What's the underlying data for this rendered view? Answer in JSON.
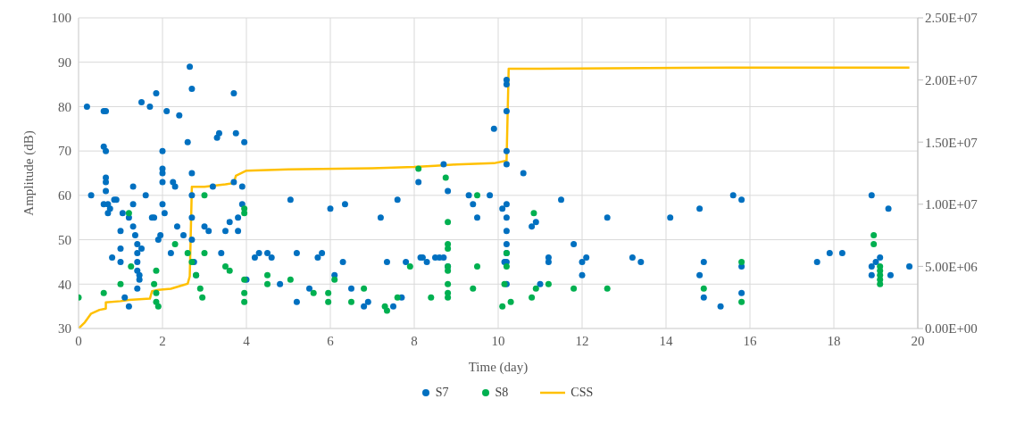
{
  "chart_data": {
    "type": "scatter",
    "xlabel": "Time (day)",
    "ylabel": "Amplitude (dB)",
    "xlim": [
      0,
      20
    ],
    "xticks": [
      0,
      2,
      4,
      6,
      8,
      10,
      12,
      14,
      16,
      18,
      20
    ],
    "ylim": [
      30,
      100
    ],
    "yticks": [
      30,
      40,
      50,
      60,
      70,
      80,
      90,
      100
    ],
    "y2lim": [
      0,
      25000000
    ],
    "y2ticks": [
      {
        "value": 0,
        "label": "0.00E+00"
      },
      {
        "value": 5000000,
        "label": "5.00E+06"
      },
      {
        "value": 10000000,
        "label": "1.00E+07"
      },
      {
        "value": 15000000,
        "label": "1.50E+07"
      },
      {
        "value": 20000000,
        "label": "2.00E+07"
      },
      {
        "value": 25000000,
        "label": "2.50E+07"
      }
    ],
    "grid": true,
    "legend": "bottom",
    "marker": "circle",
    "series": [
      {
        "name": "S7",
        "color": "#0070c0",
        "x": [
          0.2,
          0.3,
          0.6,
          0.65,
          0.6,
          0.65,
          0.65,
          0.65,
          0.65,
          0.7,
          0.75,
          0.7,
          0.6,
          0.8,
          0.85,
          0.9,
          1.0,
          1.0,
          1.0,
          1.05,
          1.1,
          1.2,
          1.2,
          1.3,
          1.3,
          1.3,
          1.35,
          1.4,
          1.4,
          1.4,
          1.4,
          1.45,
          1.4,
          1.45,
          1.5,
          1.5,
          1.6,
          1.7,
          1.75,
          1.8,
          1.85,
          1.9,
          1.95,
          2.0,
          2.0,
          2.0,
          2.0,
          2.0,
          2.05,
          2.1,
          2.2,
          2.25,
          2.3,
          2.35,
          2.4,
          2.5,
          2.6,
          2.65,
          2.7,
          2.7,
          2.7,
          2.7,
          2.7,
          2.75,
          2.8,
          3.0,
          3.1,
          3.2,
          3.3,
          3.35,
          3.4,
          3.5,
          3.6,
          3.7,
          3.75,
          3.7,
          3.8,
          3.9,
          3.95,
          3.9,
          3.8,
          4.0,
          4.2,
          4.3,
          4.5,
          4.6,
          4.8,
          5.05,
          5.2,
          5.2,
          5.5,
          5.7,
          5.8,
          6.0,
          6.1,
          6.3,
          6.35,
          6.5,
          6.8,
          6.9,
          7.2,
          7.35,
          7.5,
          7.6,
          7.7,
          7.8,
          8.1,
          8.15,
          8.2,
          8.3,
          8.5,
          8.6,
          8.7,
          8.7,
          8.8,
          8.8,
          9.3,
          9.4,
          9.5,
          9.8,
          9.9,
          10.1,
          10.15,
          10.2,
          10.2,
          10.2,
          10.2,
          10.2,
          10.2,
          10.2,
          10.2,
          10.2,
          10.2,
          10.2,
          10.2,
          10.6,
          10.8,
          10.9,
          11.2,
          11.0,
          11.2,
          11.5,
          11.8,
          12.0,
          12.0,
          12.1,
          12.6,
          13.2,
          13.4,
          14.1,
          14.8,
          14.8,
          14.9,
          14.9,
          15.3,
          15.6,
          15.8,
          15.8,
          15.8,
          17.6,
          17.9,
          18.2,
          18.9,
          18.9,
          19.0,
          18.9,
          19.1,
          19.3,
          19.8,
          19.35
        ],
        "values": [
          80,
          60,
          79,
          79,
          71,
          70,
          64,
          63,
          61,
          58,
          57,
          56,
          58,
          46,
          59,
          59,
          52,
          45,
          48,
          56,
          37,
          35,
          55,
          62,
          58,
          53,
          51,
          49,
          47,
          45,
          43,
          42,
          39,
          41,
          81,
          48,
          60,
          80,
          55,
          55,
          83,
          50,
          51,
          70,
          66,
          65,
          63,
          58,
          56,
          79,
          47,
          63,
          62,
          53,
          78,
          51,
          72,
          89,
          84,
          65,
          60,
          55,
          50,
          45,
          42,
          53,
          52,
          62,
          73,
          74,
          47,
          52,
          54,
          83,
          74,
          63,
          55,
          62,
          72,
          58,
          52,
          41,
          46,
          47,
          47,
          46,
          40,
          59,
          47,
          36,
          39,
          46,
          47,
          57,
          42,
          45,
          58,
          39,
          35,
          36,
          55,
          45,
          35,
          59,
          37,
          45,
          63,
          46,
          46,
          45,
          46,
          46,
          67,
          46,
          61,
          44,
          60,
          58,
          55,
          60,
          75,
          57,
          45,
          86,
          85,
          79,
          70,
          67,
          58,
          55,
          52,
          49,
          47,
          45,
          40,
          65,
          53,
          54,
          45,
          40,
          46,
          59,
          49,
          42,
          45,
          46,
          55,
          46,
          45,
          55,
          42,
          57,
          45,
          37,
          35,
          60,
          59,
          44,
          38,
          45,
          47,
          47,
          60,
          44,
          45,
          42,
          46,
          57,
          44,
          42
        ]
      },
      {
        "name": "S8",
        "color": "#00b050",
        "x": [
          0,
          0.6,
          1.0,
          1.2,
          1.25,
          1.8,
          1.85,
          1.85,
          1.9,
          1.85,
          2.3,
          2.6,
          2.7,
          2.8,
          2.9,
          2.95,
          3.0,
          3.0,
          3.5,
          3.6,
          3.95,
          3.95,
          3.95,
          3.95,
          3.95,
          4.5,
          4.5,
          5.05,
          5.6,
          5.95,
          5.95,
          6.1,
          6.5,
          6.8,
          7.3,
          7.35,
          7.6,
          7.9,
          8.1,
          8.4,
          8.75,
          8.8,
          8.8,
          8.8,
          8.8,
          8.8,
          8.8,
          8.8,
          8.8,
          9.4,
          9.5,
          9.5,
          10.1,
          10.15,
          10.2,
          10.2,
          10.3,
          10.85,
          10.9,
          10.8,
          11.2,
          11.8,
          12.6,
          14.9,
          15.8,
          15.8,
          18.95,
          18.95,
          19.1,
          19.1,
          19.1,
          19.1,
          19.1
        ],
        "values": [
          37,
          38,
          40,
          56,
          44,
          40,
          38,
          36,
          35,
          43,
          49,
          47,
          45,
          42,
          39,
          37,
          60,
          47,
          44,
          43,
          57,
          56,
          41,
          38,
          36,
          40,
          42,
          41,
          38,
          36,
          38,
          41,
          36,
          39,
          35,
          34,
          37,
          44,
          66,
          37,
          64,
          54,
          49,
          48,
          44,
          43,
          40,
          38,
          37,
          39,
          44,
          60,
          35,
          40,
          47,
          44,
          36,
          56,
          39,
          37,
          40,
          39,
          39,
          39,
          45,
          36,
          51,
          49,
          44,
          43,
          42,
          41,
          40
        ]
      },
      {
        "name": "CSS",
        "type": "line",
        "axis": "y2",
        "color": "#ffc000",
        "marker": "none",
        "x": [
          0,
          0.15,
          0.3,
          0.5,
          0.65,
          0.65,
          1.0,
          1.2,
          1.7,
          1.75,
          1.9,
          2.2,
          2.5,
          2.6,
          2.65,
          2.7,
          3.0,
          3.5,
          3.7,
          3.75,
          4.0,
          5.0,
          7.0,
          8.0,
          8.5,
          9.0,
          9.9,
          10.2,
          10.25,
          11.0,
          15.5,
          19.8
        ],
        "values": [
          0,
          500000,
          1200000,
          1500000,
          1600000,
          2100000,
          2200000,
          2300000,
          2400000,
          3000000,
          3100000,
          3200000,
          3500000,
          3600000,
          4200000,
          11400000,
          11400000,
          11600000,
          11700000,
          12300000,
          12700000,
          12800000,
          12900000,
          13000000,
          13100000,
          13200000,
          13300000,
          13500000,
          20900000,
          20900000,
          21000000,
          21000000
        ]
      }
    ]
  }
}
